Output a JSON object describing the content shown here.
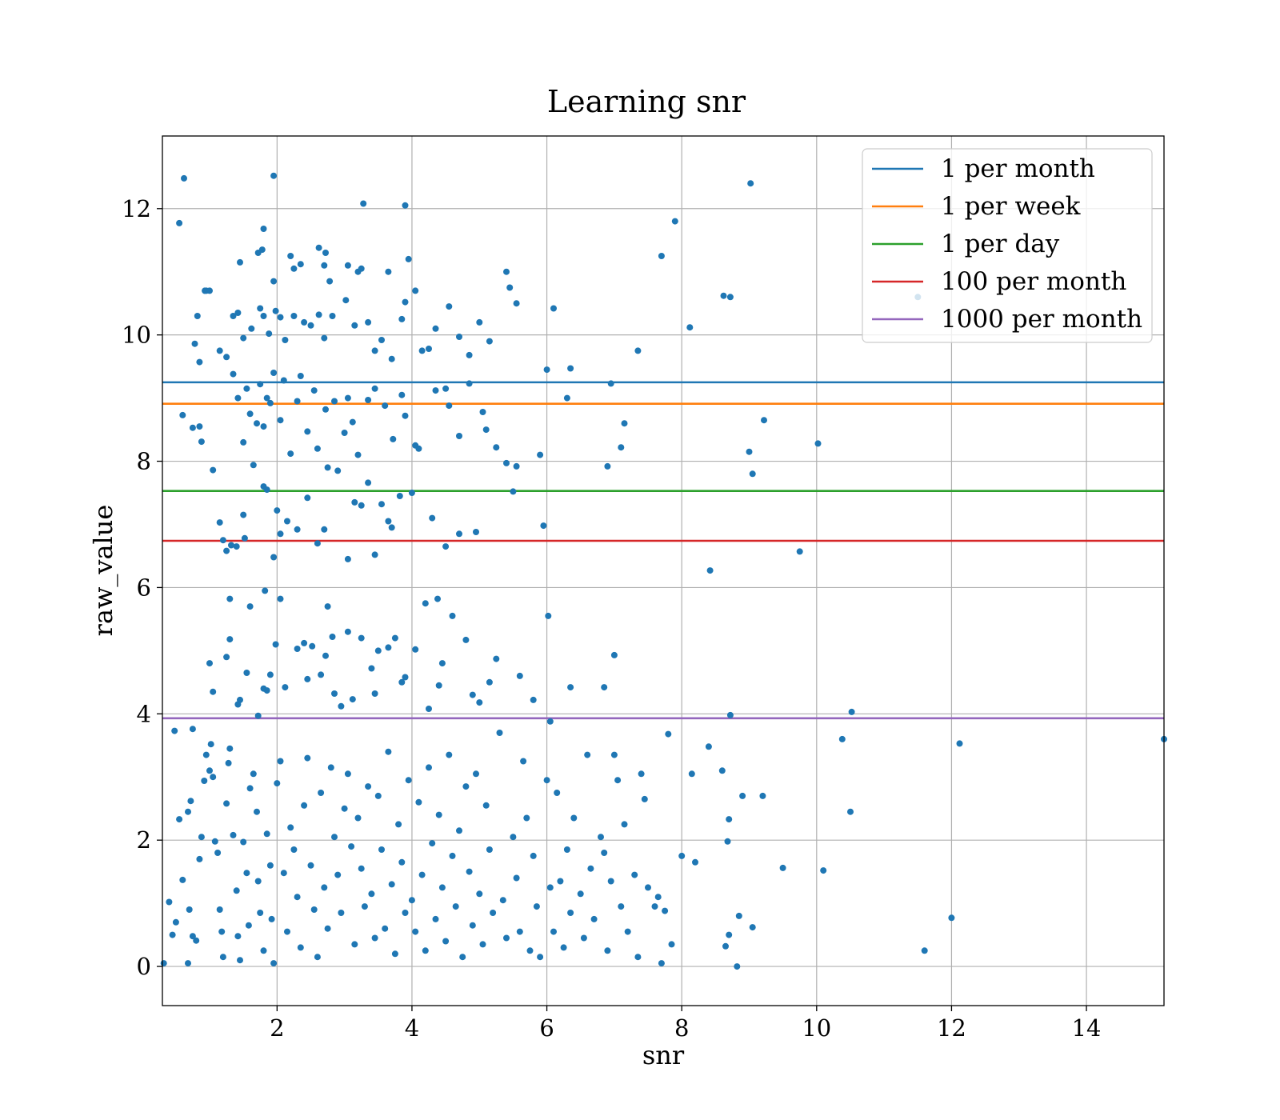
{
  "chart_data": {
    "type": "scatter",
    "title": "Learning snr",
    "xlabel": "snr",
    "ylabel": "raw_value",
    "xlim": [
      0.3,
      15.15
    ],
    "ylim": [
      -0.62,
      13.15
    ],
    "xticks": [
      2,
      4,
      6,
      8,
      10,
      12,
      14
    ],
    "yticks": [
      0,
      2,
      4,
      6,
      8,
      10,
      12
    ],
    "xtick_labels": [
      "2",
      "4",
      "6",
      "8",
      "10",
      "12",
      "14"
    ],
    "ytick_labels": [
      "0",
      "2",
      "4",
      "6",
      "8",
      "10",
      "12"
    ],
    "grid": true,
    "legend_position": "top-right",
    "point_color": "#1f77b4",
    "thresholds": [
      {
        "name": "1 per month",
        "value": 9.25,
        "color": "#1f77b4"
      },
      {
        "name": "1 per week",
        "value": 8.91,
        "color": "#ff7f0e"
      },
      {
        "name": "1 per day",
        "value": 7.53,
        "color": "#2ca02c"
      },
      {
        "name": "100 per month",
        "value": 6.74,
        "color": "#d62728"
      },
      {
        "name": "1000 per month",
        "value": 3.93,
        "color": "#9467bd"
      }
    ],
    "points": [
      [
        0.32,
        0.05
      ],
      [
        0.55,
        2.33
      ],
      [
        0.5,
        0.7
      ],
      [
        0.62,
        12.48
      ],
      [
        0.55,
        11.77
      ],
      [
        0.6,
        8.73
      ],
      [
        0.75,
        8.53
      ],
      [
        0.85,
        8.55
      ],
      [
        0.88,
        8.31
      ],
      [
        0.78,
        9.86
      ],
      [
        0.82,
        10.3
      ],
      [
        0.85,
        9.57
      ],
      [
        0.95,
        10.7
      ],
      [
        1.0,
        10.7
      ],
      [
        0.93,
        10.7
      ],
      [
        0.4,
        1.02
      ],
      [
        0.45,
        0.5
      ],
      [
        0.48,
        3.73
      ],
      [
        0.6,
        1.37
      ],
      [
        0.68,
        2.45
      ],
      [
        0.72,
        2.62
      ],
      [
        0.75,
        3.76
      ],
      [
        0.7,
        0.9
      ],
      [
        0.75,
        0.48
      ],
      [
        0.8,
        0.41
      ],
      [
        0.68,
        0.05
      ],
      [
        0.85,
        1.7
      ],
      [
        0.88,
        2.05
      ],
      [
        0.92,
        2.94
      ],
      [
        0.95,
        3.35
      ],
      [
        1.0,
        3.1
      ],
      [
        1.05,
        3.0
      ],
      [
        1.02,
        3.52
      ],
      [
        1.08,
        1.98
      ],
      [
        1.12,
        1.8
      ],
      [
        1.15,
        0.9
      ],
      [
        1.18,
        0.55
      ],
      [
        1.2,
        0.15
      ],
      [
        1.25,
        2.58
      ],
      [
        1.28,
        3.22
      ],
      [
        1.3,
        3.45
      ],
      [
        1.35,
        2.08
      ],
      [
        1.4,
        1.2
      ],
      [
        1.42,
        0.48
      ],
      [
        1.45,
        0.1
      ],
      [
        1.5,
        1.97
      ],
      [
        1.55,
        1.48
      ],
      [
        1.58,
        0.65
      ],
      [
        1.6,
        2.82
      ],
      [
        1.65,
        3.05
      ],
      [
        1.7,
        2.45
      ],
      [
        1.72,
        1.35
      ],
      [
        1.75,
        0.85
      ],
      [
        1.8,
        0.25
      ],
      [
        1.85,
        2.1
      ],
      [
        1.9,
        1.6
      ],
      [
        1.92,
        0.75
      ],
      [
        1.95,
        0.05
      ],
      [
        2.0,
        2.9
      ],
      [
        2.05,
        3.25
      ],
      [
        2.1,
        1.48
      ],
      [
        2.15,
        0.55
      ],
      [
        2.2,
        2.2
      ],
      [
        2.25,
        1.85
      ],
      [
        2.3,
        1.1
      ],
      [
        2.35,
        0.3
      ],
      [
        2.4,
        2.55
      ],
      [
        2.45,
        3.3
      ],
      [
        2.5,
        1.6
      ],
      [
        2.55,
        0.9
      ],
      [
        2.6,
        0.15
      ],
      [
        2.65,
        2.75
      ],
      [
        2.7,
        1.25
      ],
      [
        2.75,
        0.6
      ],
      [
        2.8,
        3.15
      ],
      [
        2.85,
        2.05
      ],
      [
        2.9,
        1.45
      ],
      [
        2.95,
        0.85
      ],
      [
        3.0,
        2.5
      ],
      [
        3.05,
        3.05
      ],
      [
        3.1,
        1.9
      ],
      [
        3.15,
        0.35
      ],
      [
        3.2,
        2.35
      ],
      [
        3.25,
        1.55
      ],
      [
        3.3,
        0.95
      ],
      [
        3.35,
        2.85
      ],
      [
        3.4,
        1.15
      ],
      [
        3.45,
        0.45
      ],
      [
        3.5,
        2.7
      ],
      [
        3.55,
        1.85
      ],
      [
        3.6,
        0.6
      ],
      [
        3.65,
        3.4
      ],
      [
        3.7,
        1.3
      ],
      [
        3.75,
        0.2
      ],
      [
        3.8,
        2.25
      ],
      [
        3.85,
        1.65
      ],
      [
        3.9,
        0.85
      ],
      [
        3.95,
        2.95
      ],
      [
        4.0,
        1.05
      ],
      [
        4.05,
        0.55
      ],
      [
        4.1,
        2.6
      ],
      [
        4.15,
        1.45
      ],
      [
        4.2,
        0.25
      ],
      [
        4.25,
        3.15
      ],
      [
        4.3,
        1.95
      ],
      [
        4.35,
        0.75
      ],
      [
        4.4,
        2.4
      ],
      [
        4.45,
        1.25
      ],
      [
        4.5,
        0.4
      ],
      [
        4.55,
        3.35
      ],
      [
        4.6,
        1.75
      ],
      [
        4.65,
        0.95
      ],
      [
        4.7,
        2.15
      ],
      [
        4.75,
        0.15
      ],
      [
        4.8,
        2.85
      ],
      [
        4.85,
        1.5
      ],
      [
        4.9,
        0.65
      ],
      [
        4.95,
        3.05
      ],
      [
        5.0,
        1.15
      ],
      [
        5.05,
        0.35
      ],
      [
        5.1,
        2.55
      ],
      [
        5.15,
        1.85
      ],
      [
        5.2,
        0.85
      ],
      [
        5.3,
        3.7
      ],
      [
        5.35,
        1.05
      ],
      [
        5.4,
        0.45
      ],
      [
        5.5,
        2.05
      ],
      [
        5.55,
        1.4
      ],
      [
        5.6,
        0.55
      ],
      [
        5.65,
        3.25
      ],
      [
        5.7,
        2.35
      ],
      [
        5.75,
        0.25
      ],
      [
        5.8,
        1.75
      ],
      [
        5.85,
        0.95
      ],
      [
        5.9,
        0.15
      ],
      [
        6.0,
        2.95
      ],
      [
        6.05,
        1.25
      ],
      [
        6.1,
        0.55
      ],
      [
        6.15,
        2.75
      ],
      [
        6.2,
        1.35
      ],
      [
        6.25,
        0.3
      ],
      [
        6.3,
        1.85
      ],
      [
        6.35,
        0.85
      ],
      [
        6.4,
        2.35
      ],
      [
        6.5,
        1.15
      ],
      [
        6.55,
        0.45
      ],
      [
        6.6,
        3.35
      ],
      [
        6.65,
        1.55
      ],
      [
        6.7,
        0.75
      ],
      [
        6.8,
        2.05
      ],
      [
        6.85,
        1.8
      ],
      [
        6.9,
        0.25
      ],
      [
        6.95,
        1.35
      ],
      [
        7.0,
        3.35
      ],
      [
        7.05,
        2.95
      ],
      [
        7.1,
        0.95
      ],
      [
        7.15,
        2.25
      ],
      [
        7.2,
        0.55
      ],
      [
        7.3,
        1.45
      ],
      [
        7.35,
        0.15
      ],
      [
        7.4,
        3.05
      ],
      [
        7.45,
        2.65
      ],
      [
        7.5,
        1.25
      ],
      [
        7.6,
        0.95
      ],
      [
        7.65,
        1.1
      ],
      [
        7.7,
        0.05
      ],
      [
        7.75,
        0.88
      ],
      [
        7.8,
        3.68
      ],
      [
        7.85,
        0.35
      ],
      [
        8.0,
        1.75
      ],
      [
        8.15,
        3.05
      ],
      [
        8.2,
        1.65
      ],
      [
        8.4,
        3.48
      ],
      [
        8.6,
        3.1
      ],
      [
        8.65,
        0.32
      ],
      [
        8.7,
        2.33
      ],
      [
        8.68,
        1.98
      ],
      [
        8.7,
        0.5
      ],
      [
        8.85,
        0.8
      ],
      [
        8.82,
        0.0
      ],
      [
        8.9,
        2.7
      ],
      [
        9.05,
        0.62
      ],
      [
        9.2,
        2.7
      ],
      [
        9.5,
        1.56
      ],
      [
        10.1,
        1.52
      ],
      [
        10.38,
        3.6
      ],
      [
        10.5,
        2.45
      ],
      [
        11.6,
        0.25
      ],
      [
        12.0,
        0.77
      ],
      [
        12.12,
        3.53
      ],
      [
        15.15,
        3.6
      ],
      [
        1.0,
        4.8
      ],
      [
        1.05,
        4.35
      ],
      [
        1.25,
        4.9
      ],
      [
        1.3,
        5.18
      ],
      [
        1.3,
        5.82
      ],
      [
        1.45,
        4.22
      ],
      [
        1.42,
        4.15
      ],
      [
        1.55,
        4.65
      ],
      [
        1.6,
        5.7
      ],
      [
        1.72,
        3.97
      ],
      [
        1.8,
        4.4
      ],
      [
        1.85,
        4.37
      ],
      [
        1.82,
        5.95
      ],
      [
        1.9,
        4.62
      ],
      [
        1.98,
        5.1
      ],
      [
        2.05,
        5.82
      ],
      [
        2.12,
        4.42
      ],
      [
        2.3,
        5.03
      ],
      [
        2.4,
        5.12
      ],
      [
        2.45,
        4.55
      ],
      [
        2.52,
        5.07
      ],
      [
        2.65,
        4.62
      ],
      [
        2.72,
        4.92
      ],
      [
        2.75,
        5.7
      ],
      [
        2.82,
        5.22
      ],
      [
        2.85,
        4.32
      ],
      [
        2.95,
        4.12
      ],
      [
        3.05,
        5.3
      ],
      [
        3.12,
        4.23
      ],
      [
        3.25,
        5.2
      ],
      [
        3.4,
        4.72
      ],
      [
        3.45,
        4.32
      ],
      [
        3.5,
        5.0
      ],
      [
        3.65,
        5.05
      ],
      [
        3.75,
        5.2
      ],
      [
        3.85,
        4.5
      ],
      [
        3.9,
        4.58
      ],
      [
        4.05,
        5.02
      ],
      [
        4.2,
        5.75
      ],
      [
        4.25,
        4.08
      ],
      [
        4.38,
        5.82
      ],
      [
        4.4,
        4.45
      ],
      [
        4.45,
        4.8
      ],
      [
        4.6,
        5.55
      ],
      [
        4.8,
        5.17
      ],
      [
        4.9,
        4.3
      ],
      [
        5.0,
        4.18
      ],
      [
        5.15,
        4.5
      ],
      [
        5.25,
        4.87
      ],
      [
        5.6,
        4.6
      ],
      [
        5.8,
        4.22
      ],
      [
        6.02,
        5.55
      ],
      [
        6.05,
        3.88
      ],
      [
        6.35,
        4.42
      ],
      [
        6.85,
        4.42
      ],
      [
        7.0,
        4.93
      ],
      [
        8.72,
        3.98
      ],
      [
        10.52,
        4.03
      ],
      [
        1.05,
        7.86
      ],
      [
        1.15,
        7.03
      ],
      [
        1.2,
        6.75
      ],
      [
        1.25,
        6.58
      ],
      [
        1.32,
        6.67
      ],
      [
        1.4,
        6.65
      ],
      [
        1.5,
        7.15
      ],
      [
        1.52,
        6.78
      ],
      [
        1.65,
        7.94
      ],
      [
        1.8,
        7.6
      ],
      [
        1.85,
        7.55
      ],
      [
        1.95,
        6.48
      ],
      [
        2.0,
        7.22
      ],
      [
        2.05,
        6.85
      ],
      [
        2.15,
        7.05
      ],
      [
        2.3,
        6.92
      ],
      [
        2.45,
        7.42
      ],
      [
        2.6,
        6.7
      ],
      [
        2.7,
        6.92
      ],
      [
        2.75,
        7.9
      ],
      [
        2.9,
        7.85
      ],
      [
        3.05,
        6.45
      ],
      [
        3.15,
        7.35
      ],
      [
        3.25,
        7.3
      ],
      [
        3.35,
        7.66
      ],
      [
        3.45,
        6.52
      ],
      [
        3.55,
        7.32
      ],
      [
        3.65,
        7.05
      ],
      [
        3.7,
        6.95
      ],
      [
        3.82,
        7.45
      ],
      [
        4.0,
        7.5
      ],
      [
        4.3,
        7.1
      ],
      [
        4.5,
        6.65
      ],
      [
        4.7,
        6.85
      ],
      [
        4.95,
        6.88
      ],
      [
        5.5,
        7.52
      ],
      [
        5.95,
        6.98
      ],
      [
        6.9,
        7.92
      ],
      [
        9.75,
        6.57
      ],
      [
        8.42,
        6.27
      ],
      [
        1.15,
        9.75
      ],
      [
        1.25,
        9.65
      ],
      [
        1.35,
        9.38
      ],
      [
        1.42,
        9.0
      ],
      [
        1.5,
        8.3
      ],
      [
        1.55,
        9.15
      ],
      [
        1.6,
        8.75
      ],
      [
        1.7,
        8.6
      ],
      [
        1.75,
        9.22
      ],
      [
        1.8,
        8.55
      ],
      [
        1.85,
        9.0
      ],
      [
        1.9,
        8.92
      ],
      [
        1.95,
        9.4
      ],
      [
        2.05,
        8.65
      ],
      [
        2.1,
        9.28
      ],
      [
        2.2,
        8.12
      ],
      [
        2.3,
        8.95
      ],
      [
        2.35,
        9.35
      ],
      [
        2.45,
        8.47
      ],
      [
        2.55,
        9.12
      ],
      [
        2.6,
        8.2
      ],
      [
        2.72,
        8.82
      ],
      [
        2.85,
        8.95
      ],
      [
        3.0,
        8.45
      ],
      [
        3.05,
        9.0
      ],
      [
        3.12,
        8.62
      ],
      [
        3.2,
        8.1
      ],
      [
        3.35,
        8.97
      ],
      [
        3.45,
        9.15
      ],
      [
        3.6,
        8.88
      ],
      [
        3.72,
        8.35
      ],
      [
        3.85,
        9.05
      ],
      [
        3.9,
        8.72
      ],
      [
        4.05,
        8.25
      ],
      [
        4.1,
        8.2
      ],
      [
        4.25,
        9.78
      ],
      [
        4.35,
        9.12
      ],
      [
        4.5,
        9.15
      ],
      [
        4.55,
        8.88
      ],
      [
        4.7,
        8.4
      ],
      [
        4.85,
        9.23
      ],
      [
        5.05,
        8.78
      ],
      [
        5.1,
        8.5
      ],
      [
        5.25,
        8.22
      ],
      [
        5.4,
        7.97
      ],
      [
        5.55,
        7.92
      ],
      [
        5.9,
        8.1
      ],
      [
        6.0,
        9.45
      ],
      [
        6.35,
        9.47
      ],
      [
        6.3,
        9.0
      ],
      [
        6.95,
        9.23
      ],
      [
        7.15,
        8.6
      ],
      [
        7.1,
        8.22
      ],
      [
        9.0,
        8.15
      ],
      [
        9.05,
        7.8
      ],
      [
        9.22,
        8.65
      ],
      [
        10.02,
        8.28
      ],
      [
        1.35,
        10.3
      ],
      [
        1.42,
        10.35
      ],
      [
        1.5,
        9.95
      ],
      [
        1.62,
        10.1
      ],
      [
        1.75,
        10.42
      ],
      [
        1.8,
        10.3
      ],
      [
        1.88,
        10.02
      ],
      [
        1.98,
        10.38
      ],
      [
        2.05,
        10.28
      ],
      [
        2.12,
        9.92
      ],
      [
        2.25,
        10.3
      ],
      [
        2.4,
        10.2
      ],
      [
        2.5,
        10.15
      ],
      [
        2.62,
        10.32
      ],
      [
        2.7,
        9.95
      ],
      [
        2.82,
        10.3
      ],
      [
        3.02,
        10.55
      ],
      [
        3.15,
        10.15
      ],
      [
        3.35,
        10.2
      ],
      [
        3.45,
        9.75
      ],
      [
        3.55,
        9.92
      ],
      [
        3.7,
        9.62
      ],
      [
        3.85,
        10.25
      ],
      [
        3.9,
        10.52
      ],
      [
        4.05,
        10.7
      ],
      [
        4.15,
        9.75
      ],
      [
        4.35,
        10.1
      ],
      [
        4.55,
        10.45
      ],
      [
        4.7,
        9.97
      ],
      [
        4.85,
        9.68
      ],
      [
        5.0,
        10.2
      ],
      [
        5.15,
        9.9
      ],
      [
        5.4,
        11.0
      ],
      [
        5.45,
        10.75
      ],
      [
        5.55,
        10.5
      ],
      [
        6.1,
        10.42
      ],
      [
        7.35,
        9.75
      ],
      [
        8.12,
        10.12
      ],
      [
        8.62,
        10.62
      ],
      [
        8.72,
        10.6
      ],
      [
        11.5,
        10.6
      ],
      [
        1.45,
        11.15
      ],
      [
        1.72,
        11.3
      ],
      [
        1.8,
        11.68
      ],
      [
        1.78,
        11.35
      ],
      [
        1.95,
        10.85
      ],
      [
        2.2,
        11.25
      ],
      [
        2.25,
        11.05
      ],
      [
        2.35,
        11.12
      ],
      [
        2.62,
        11.38
      ],
      [
        2.72,
        11.3
      ],
      [
        2.7,
        11.1
      ],
      [
        2.78,
        10.85
      ],
      [
        3.05,
        11.1
      ],
      [
        3.2,
        11.0
      ],
      [
        3.25,
        11.05
      ],
      [
        3.65,
        11.0
      ],
      [
        3.95,
        11.2
      ],
      [
        3.9,
        12.05
      ],
      [
        3.28,
        12.08
      ],
      [
        1.95,
        12.52
      ],
      [
        7.7,
        11.25
      ],
      [
        7.9,
        11.8
      ],
      [
        9.02,
        12.4
      ]
    ]
  }
}
